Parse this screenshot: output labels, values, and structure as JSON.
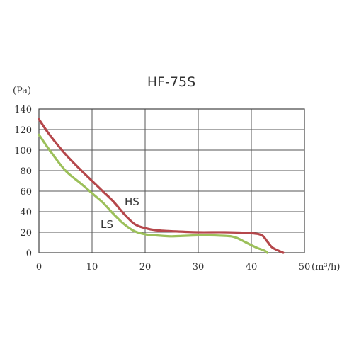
{
  "chart_data": {
    "type": "line",
    "title": "HF-75S",
    "ylabel": "(Pa)",
    "xlabel": "(m³/h)",
    "xlim": [
      0,
      50
    ],
    "ylim": [
      0,
      140
    ],
    "x_ticks": [
      0,
      10,
      20,
      30,
      40,
      50
    ],
    "y_ticks": [
      0,
      20,
      40,
      60,
      80,
      100,
      120,
      140
    ],
    "grid": true,
    "series": [
      {
        "name": "HS",
        "color": "#b5474b",
        "points": [
          [
            0,
            130
          ],
          [
            2,
            115
          ],
          [
            5,
            96
          ],
          [
            8,
            80
          ],
          [
            10,
            70
          ],
          [
            12,
            60
          ],
          [
            14,
            50
          ],
          [
            16,
            38
          ],
          [
            18,
            28
          ],
          [
            20,
            24
          ],
          [
            22,
            22
          ],
          [
            25,
            21
          ],
          [
            30,
            20
          ],
          [
            35,
            20
          ],
          [
            40,
            19
          ],
          [
            42,
            17
          ],
          [
            43,
            11
          ],
          [
            44,
            5
          ],
          [
            46,
            0
          ]
        ]
      },
      {
        "name": "LS",
        "color": "#9cc05a",
        "points": [
          [
            0,
            115
          ],
          [
            2,
            100
          ],
          [
            5,
            80
          ],
          [
            8,
            67
          ],
          [
            10,
            58
          ],
          [
            12,
            49
          ],
          [
            14,
            38
          ],
          [
            16,
            28
          ],
          [
            18,
            21
          ],
          [
            20,
            18
          ],
          [
            22,
            17
          ],
          [
            25,
            16
          ],
          [
            30,
            17
          ],
          [
            35,
            16.5
          ],
          [
            37,
            15
          ],
          [
            39,
            10
          ],
          [
            41,
            5
          ],
          [
            42.5,
            2
          ],
          [
            43,
            0
          ]
        ]
      }
    ]
  }
}
